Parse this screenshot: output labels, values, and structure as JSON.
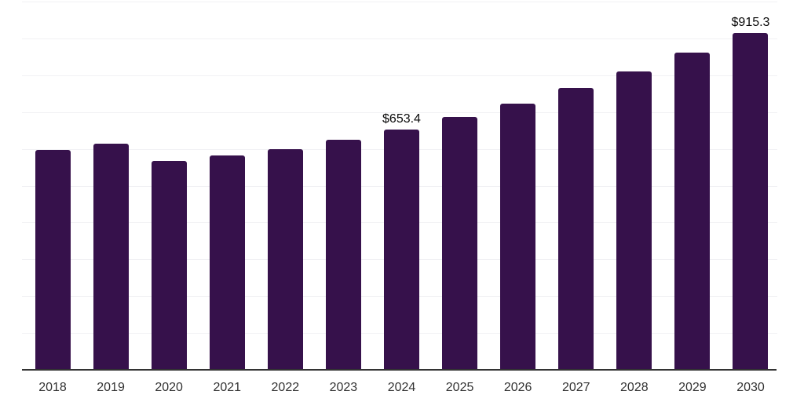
{
  "chart_data": {
    "type": "bar",
    "title": "",
    "xlabel": "",
    "ylabel": "",
    "categories": [
      "2018",
      "2019",
      "2020",
      "2021",
      "2022",
      "2023",
      "2024",
      "2025",
      "2026",
      "2027",
      "2028",
      "2029",
      "2030"
    ],
    "values": [
      597,
      614,
      568,
      582,
      600,
      625,
      653.4,
      686,
      723,
      765,
      811,
      862,
      915.3
    ],
    "data_labels": {
      "2024": "$653.4",
      "2030": "$915.3"
    },
    "ylim": [
      0,
      1000
    ],
    "grid_step": 100,
    "grid": "horizontal-only",
    "legend": "none",
    "y_tick_labels_visible": false,
    "colors": {
      "bar": "#36114b",
      "gridline": "#f1f1f4",
      "axis_line": "#333333",
      "x_tick_label": "#333333",
      "data_label": "#0b0b0b",
      "background": "#ffffff"
    }
  }
}
